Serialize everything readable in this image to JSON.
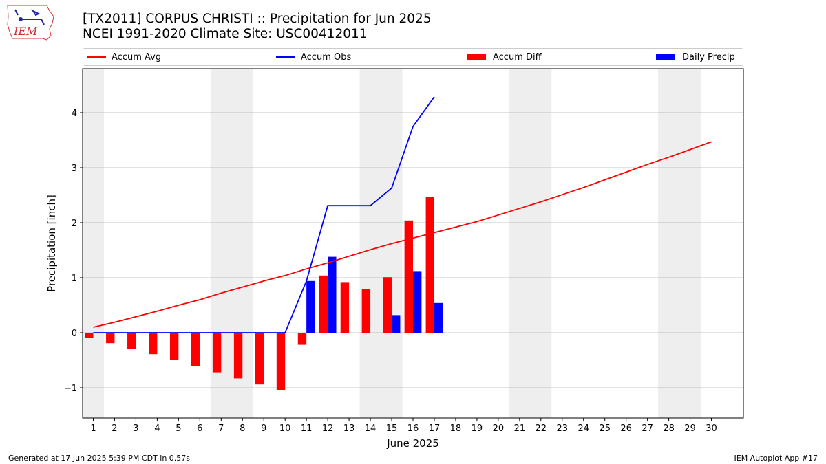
{
  "header": {
    "title": "[TX2011] CORPUS CHRISTI :: Precipitation for Jun 2025",
    "subtitle": "NCEI 1991-2020 Climate Site: USC00412011",
    "logo_text": "IEM"
  },
  "footer": {
    "left": "Generated at 17 Jun 2025 5:39 PM CDT in 0.57s",
    "right": "IEM Autoplot App #17"
  },
  "colors": {
    "accum_avg": "#ff0000",
    "accum_obs": "#0000ff",
    "accum_diff": "#ff0000",
    "daily_precip": "#0000ff",
    "weekend_band": "#eeeeee",
    "grid": "#b0b0b0"
  },
  "chart_data": {
    "type": "bar",
    "xlabel": "June 2025",
    "ylabel": "Precipitation [inch]",
    "xlim": [
      0.5,
      31.5
    ],
    "ylim": [
      -1.55,
      4.8
    ],
    "x_ticks": [
      1,
      2,
      3,
      4,
      5,
      6,
      7,
      8,
      9,
      10,
      11,
      12,
      13,
      14,
      15,
      16,
      17,
      18,
      19,
      20,
      21,
      22,
      23,
      24,
      25,
      26,
      27,
      28,
      29,
      30
    ],
    "y_ticks": [
      -1,
      0,
      1,
      2,
      3,
      4
    ],
    "y_tick_labels": [
      "−1",
      "0",
      "1",
      "2",
      "3",
      "4"
    ],
    "grid": "horizontal",
    "legend_position": "top",
    "weekend_bands": [
      [
        0.5,
        1.5
      ],
      [
        6.5,
        8.5
      ],
      [
        13.5,
        15.5
      ],
      [
        20.5,
        22.5
      ],
      [
        27.5,
        29.5
      ]
    ],
    "series": [
      {
        "name": "Accum Avg",
        "kind": "line",
        "x": [
          1,
          2,
          3,
          4,
          5,
          6,
          7,
          8,
          9,
          10,
          11,
          12,
          13,
          14,
          15,
          16,
          17,
          18,
          19,
          20,
          21,
          22,
          23,
          24,
          25,
          26,
          27,
          28,
          29,
          30
        ],
        "values": [
          0.1,
          0.19,
          0.29,
          0.39,
          0.5,
          0.6,
          0.72,
          0.83,
          0.94,
          1.04,
          1.16,
          1.27,
          1.39,
          1.51,
          1.62,
          1.72,
          1.82,
          1.92,
          2.02,
          2.14,
          2.26,
          2.38,
          2.51,
          2.64,
          2.78,
          2.92,
          3.06,
          3.19,
          3.33,
          3.47
        ]
      },
      {
        "name": "Accum Obs",
        "kind": "line",
        "x": [
          1,
          2,
          3,
          4,
          5,
          6,
          7,
          8,
          9,
          10,
          11,
          12,
          13,
          14,
          15,
          16,
          17
        ],
        "values": [
          0,
          0,
          0,
          0,
          0,
          0,
          0,
          0,
          0,
          0,
          0.94,
          2.31,
          2.31,
          2.31,
          2.63,
          3.75,
          4.29
        ]
      },
      {
        "name": "Accum Diff",
        "kind": "bar",
        "x": [
          1,
          2,
          3,
          4,
          5,
          6,
          7,
          8,
          9,
          10,
          11,
          12,
          13,
          14,
          15,
          16,
          17
        ],
        "values": [
          -0.1,
          -0.19,
          -0.29,
          -0.39,
          -0.5,
          -0.6,
          -0.72,
          -0.83,
          -0.94,
          -1.04,
          -0.22,
          1.04,
          0.92,
          0.8,
          1.01,
          2.04,
          2.47
        ]
      },
      {
        "name": "Daily Precip",
        "kind": "bar",
        "x": [
          1,
          2,
          3,
          4,
          5,
          6,
          7,
          8,
          9,
          10,
          11,
          12,
          13,
          14,
          15,
          16,
          17
        ],
        "values": [
          0,
          0,
          0,
          0,
          0,
          0,
          0,
          0,
          0,
          0,
          0.94,
          1.38,
          0,
          0,
          0.32,
          1.12,
          0.54
        ]
      }
    ]
  }
}
